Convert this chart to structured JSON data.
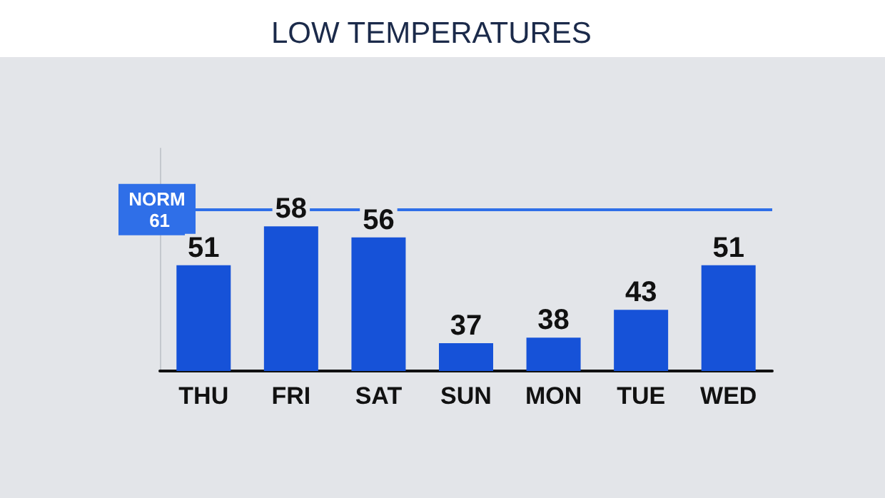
{
  "chart_data": {
    "type": "bar",
    "title": "LOW TEMPERATURES",
    "categories": [
      "THU",
      "FRI",
      "SAT",
      "SUN",
      "MON",
      "TUE",
      "WED"
    ],
    "values": [
      51,
      58,
      56,
      37,
      38,
      43,
      51
    ],
    "color": "#1652d8",
    "ylim": [
      32,
      72
    ],
    "data_labels": true,
    "ref_lines": [
      {
        "axis": "y",
        "value": 61,
        "label": "NORM 61",
        "color": "#2f6fe8"
      }
    ]
  }
}
